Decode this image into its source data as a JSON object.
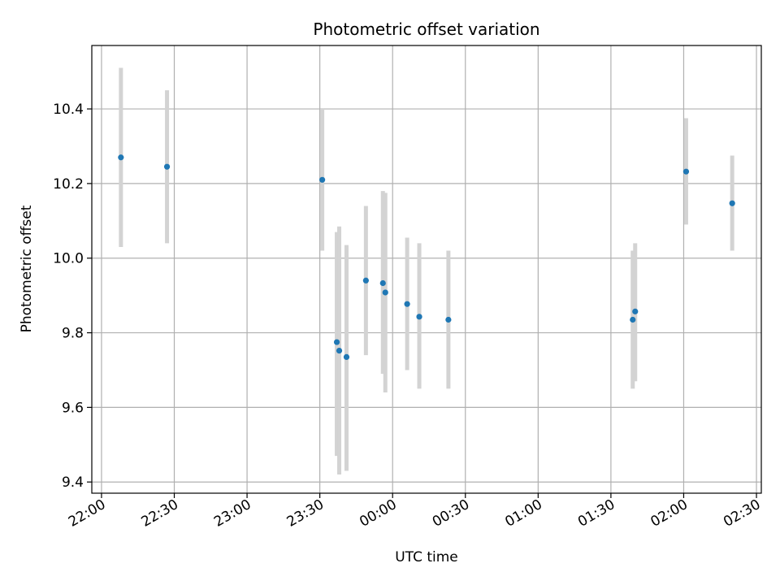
{
  "chart_data": {
    "type": "scatter",
    "title": "Photometric offset variation",
    "xlabel": "UTC time",
    "ylabel": "Photometric offset",
    "x_ticks": [
      "22:00",
      "22:30",
      "23:00",
      "23:30",
      "00:00",
      "00:30",
      "01:00",
      "01:30",
      "02:00",
      "02:30"
    ],
    "y_ticks": [
      "9.4",
      "9.6",
      "9.8",
      "10.0",
      "10.2",
      "10.4"
    ],
    "xlim": [
      "21:56",
      "02:32"
    ],
    "ylim": [
      9.37,
      10.57
    ],
    "grid": true,
    "point_color": "#1f77b4",
    "errorbar_color": "#d3d3d3",
    "points": [
      {
        "x": "22:08",
        "y": 10.27,
        "ylow": 10.03,
        "yhigh": 10.51
      },
      {
        "x": "22:27",
        "y": 10.245,
        "ylow": 10.04,
        "yhigh": 10.45
      },
      {
        "x": "23:31",
        "y": 10.21,
        "ylow": 10.02,
        "yhigh": 10.4
      },
      {
        "x": "23:37",
        "y": 9.775,
        "ylow": 9.47,
        "yhigh": 10.07
      },
      {
        "x": "23:38",
        "y": 9.752,
        "ylow": 9.42,
        "yhigh": 10.085
      },
      {
        "x": "23:41",
        "y": 9.735,
        "ylow": 9.43,
        "yhigh": 10.035
      },
      {
        "x": "23:49",
        "y": 9.94,
        "ylow": 9.74,
        "yhigh": 10.14
      },
      {
        "x": "23:56",
        "y": 9.933,
        "ylow": 9.69,
        "yhigh": 10.18
      },
      {
        "x": "23:57",
        "y": 9.908,
        "ylow": 9.64,
        "yhigh": 10.175
      },
      {
        "x": "00:06",
        "y": 9.877,
        "ylow": 9.7,
        "yhigh": 10.055
      },
      {
        "x": "00:11",
        "y": 9.843,
        "ylow": 9.65,
        "yhigh": 10.04
      },
      {
        "x": "00:23",
        "y": 9.835,
        "ylow": 9.65,
        "yhigh": 10.02
      },
      {
        "x": "01:39",
        "y": 9.835,
        "ylow": 9.65,
        "yhigh": 10.02
      },
      {
        "x": "01:40",
        "y": 9.857,
        "ylow": 9.67,
        "yhigh": 10.04
      },
      {
        "x": "02:01",
        "y": 10.232,
        "ylow": 10.09,
        "yhigh": 10.375
      },
      {
        "x": "02:20",
        "y": 10.147,
        "ylow": 10.02,
        "yhigh": 10.275
      }
    ]
  }
}
